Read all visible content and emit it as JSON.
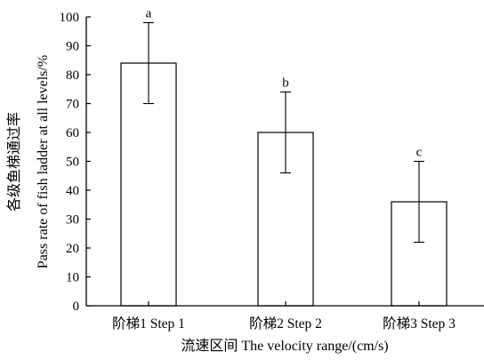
{
  "chart_data": {
    "type": "bar",
    "categories": [
      "阶梯1 Step 1",
      "阶梯2 Step 2",
      "阶梯3 Step 3"
    ],
    "values": [
      84,
      60,
      36
    ],
    "error_upper": [
      98,
      74,
      50
    ],
    "error_lower": [
      70,
      46,
      22
    ],
    "significance_labels": [
      "a",
      "b",
      "c"
    ],
    "xlabel": "流速区间 The velocity range/(cm/s)",
    "ylabel_line1": "各级鱼梯通过率",
    "ylabel_line2": "Pass rate of fish ladder at all levels/%",
    "ylim": [
      0,
      100
    ],
    "yticks": [
      0,
      10,
      20,
      30,
      40,
      50,
      60,
      70,
      80,
      90,
      100
    ],
    "grid": false,
    "bar_fill": "#ffffff",
    "bar_stroke": "#000000"
  }
}
